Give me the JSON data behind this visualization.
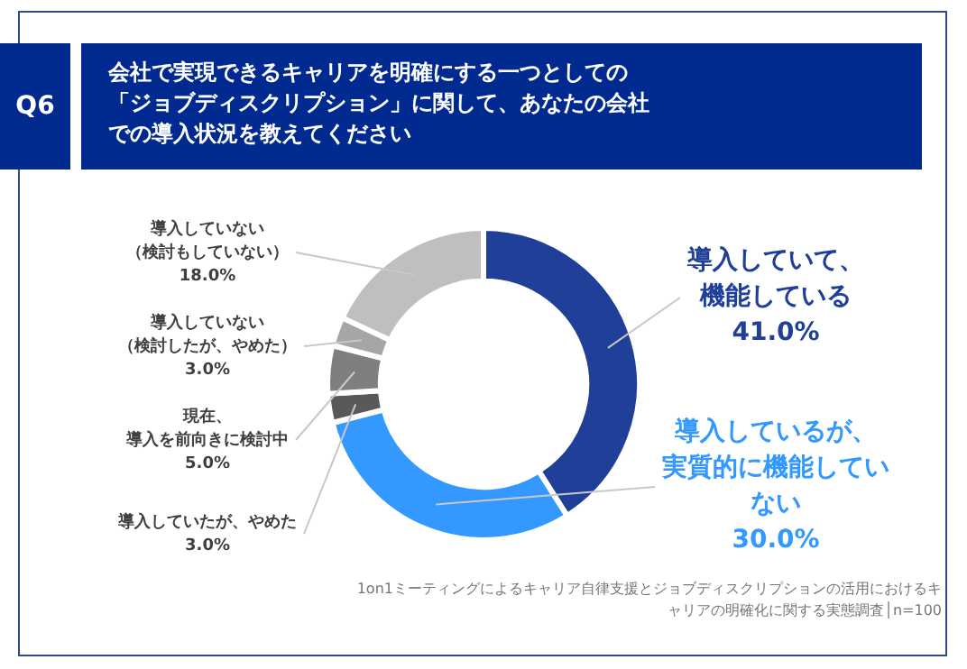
{
  "chart_data": {
    "type": "donut",
    "title": "会社で実現できるキャリアを明確にする一つとしての「ジョブディスクリプション」に関して、あなたの会社での導入状況を教えてください",
    "subtitle": "Q6",
    "categories": [
      "導入していて、機能している",
      "導入しているが、実質的に機能していない",
      "導入していたが、やめた",
      "現在、導入を前向きに検討中",
      "導入していない（検討したが、やめた）",
      "導入していない（検討もしていない）"
    ],
    "values": [
      41,
      30,
      3,
      5,
      3,
      18
    ],
    "value_labels": [
      "41.0%",
      "30.0%",
      "3.0%",
      "5.0%",
      "3.0%",
      "18.0%"
    ],
    "colors": [
      "#1f3f99",
      "#3399ff",
      "#595959",
      "#7f7f7f",
      "#a6a6a6",
      "#bfbfbf"
    ],
    "annotations": [
      "1on1ミーティングによるキャリア自律支援とジョブディスクリプションの活用におけるキャリアの明確化に関する実態調査│n=100"
    ],
    "legend": false
  }
}
